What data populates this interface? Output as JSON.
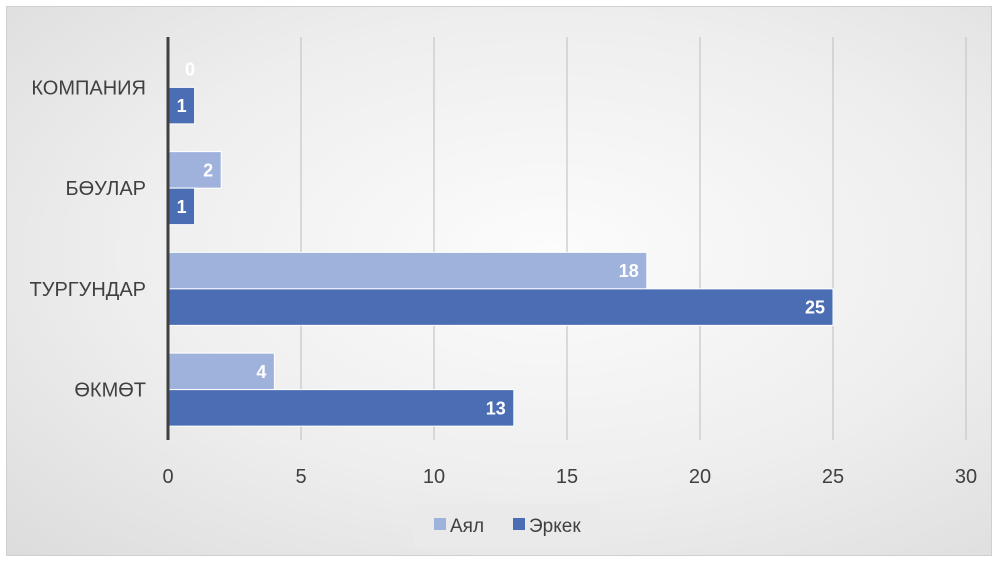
{
  "chart_data": {
    "type": "bar",
    "orientation": "horizontal",
    "categories": [
      "ӨКМӨТ",
      "ТУРГУНДАР",
      "БӨУЛАР",
      "КОМПАНИЯ"
    ],
    "series": [
      {
        "name": "Аял",
        "values": [
          4,
          18,
          2,
          0
        ],
        "color": "#9fb2dc"
      },
      {
        "name": "Эркек",
        "values": [
          13,
          25,
          1,
          1
        ],
        "color": "#4a6db3"
      }
    ],
    "xlim": [
      0,
      30
    ],
    "xticks": [
      0,
      5,
      10,
      15,
      20,
      25,
      30
    ],
    "grid": true,
    "legend": "bottom",
    "data_labels": true
  }
}
